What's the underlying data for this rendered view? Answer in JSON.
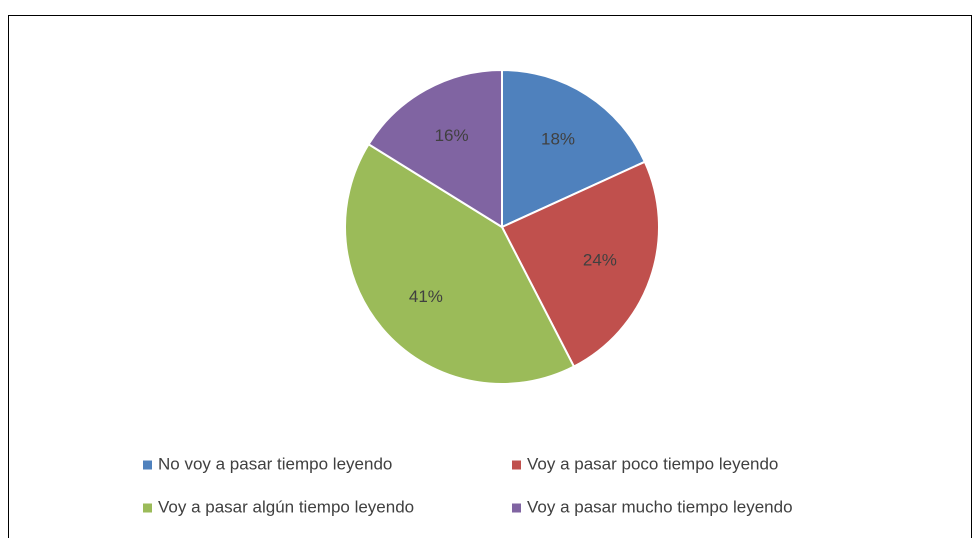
{
  "chart_data": {
    "type": "pie",
    "categories": [
      "No voy a pasar tiempo leyendo",
      "Voy a pasar poco tiempo leyendo",
      "Voy a pasar algún tiempo leyendo",
      "Voy a pasar mucho tiempo leyendo"
    ],
    "values": [
      18,
      24,
      41,
      16
    ],
    "value_labels": [
      "18%",
      "24%",
      "41%",
      "16%"
    ],
    "colors": [
      "#4f81bd",
      "#c0504d",
      "#9bbb59",
      "#8064a2"
    ],
    "legend": "bottom"
  }
}
